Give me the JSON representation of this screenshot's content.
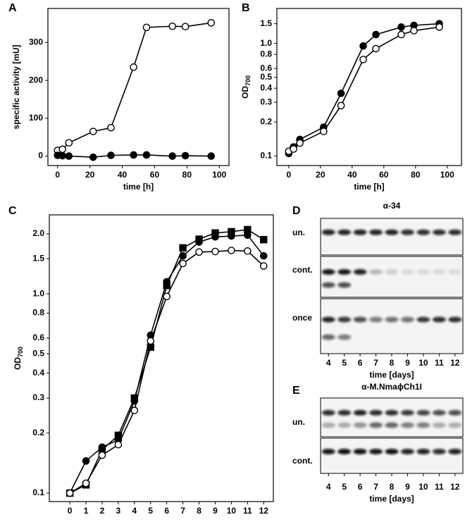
{
  "chart_data": [
    {
      "type": "line",
      "label": "A",
      "xlabel": "time [h]",
      "ylabel": "specific activity [mU]",
      "xlim": [
        -6,
        106
      ],
      "ylim": [
        -25,
        390
      ],
      "xticks": [
        0,
        20,
        40,
        60,
        80,
        100
      ],
      "yticks": [
        0,
        100,
        200,
        300
      ],
      "log_y": false,
      "series": [
        {
          "color": "#000000",
          "fill": "#ffffff",
          "marker": "circle",
          "x": [
            0,
            3,
            7,
            22,
            33,
            47,
            55,
            71,
            79,
            95
          ],
          "values": [
            15,
            18,
            35,
            65,
            75,
            235,
            340,
            343,
            342,
            352
          ]
        },
        {
          "color": "#000000",
          "fill": "#000000",
          "marker": "circle",
          "x": [
            0,
            3,
            7,
            22,
            33,
            47,
            55,
            71,
            79,
            95
          ],
          "values": [
            2,
            1,
            0,
            -3,
            2,
            3,
            3,
            0,
            1,
            0
          ]
        }
      ]
    },
    {
      "type": "line",
      "label": "B",
      "xlabel": "time [h]",
      "ylabel": "OD",
      "ylabel_sub": "700",
      "xlim": [
        -7.5,
        109
      ],
      "ylim": [
        0.082,
        2.05
      ],
      "xticks": [
        0,
        20,
        40,
        60,
        80,
        100
      ],
      "yticks": [
        0.1,
        0.2,
        0.3,
        0.4,
        0.5,
        0.6,
        0.8,
        {
          "value": 1,
          "label": "1.0"
        },
        1.5
      ],
      "log_y": true,
      "series": [
        {
          "color": "#000000",
          "fill": "#000000",
          "marker": "circle",
          "x": [
            0,
            3,
            7,
            22,
            33,
            47,
            55,
            71,
            79,
            95
          ],
          "values": [
            0.105,
            0.12,
            0.14,
            0.18,
            0.36,
            0.95,
            1.2,
            1.4,
            1.45,
            1.5
          ]
        },
        {
          "color": "#000000",
          "fill": "#ffffff",
          "marker": "circle",
          "x": [
            0,
            3,
            7,
            22,
            33,
            47,
            55,
            71,
            79,
            95
          ],
          "values": [
            0.11,
            0.115,
            0.13,
            0.165,
            0.28,
            0.72,
            0.9,
            1.2,
            1.3,
            1.4
          ]
        }
      ]
    },
    {
      "type": "line",
      "label": "C",
      "xlabel": "time [days]",
      "ylabel": "OD",
      "ylabel_sub": "700",
      "xlim": [
        -1.27,
        12.6
      ],
      "ylim": [
        0.0907,
        2.49
      ],
      "xticks": [
        0,
        1,
        2,
        3,
        4,
        5,
        6,
        7,
        8,
        9,
        10,
        11,
        12
      ],
      "yticks": [
        0.1,
        0.2,
        0.3,
        0.4,
        0.5,
        0.6,
        0.8,
        {
          "value": 1,
          "label": "1.0"
        },
        1.5,
        {
          "value": 2,
          "label": "2.0"
        }
      ],
      "log_y": true,
      "series": [
        {
          "color": "#000000",
          "fill": "#000000",
          "marker": "square",
          "x": [
            0,
            1,
            2,
            3,
            4,
            5,
            6,
            7,
            8,
            9,
            10,
            11,
            12
          ],
          "values": [
            0.1,
            0.11,
            0.165,
            0.195,
            0.3,
            0.54,
            1.1,
            1.7,
            1.88,
            2.02,
            2.05,
            2.1,
            1.87
          ]
        },
        {
          "color": "#000000",
          "fill": "#000000",
          "marker": "circle",
          "x": [
            0,
            1,
            2,
            3,
            4,
            5,
            6,
            7,
            8,
            9,
            10,
            11,
            12
          ],
          "values": [
            0.1,
            0.145,
            0.17,
            0.185,
            0.29,
            0.62,
            1.15,
            1.55,
            1.82,
            1.93,
            1.95,
            1.97,
            1.55
          ]
        },
        {
          "color": "#000000",
          "fill": "#ffffff",
          "marker": "circle",
          "x": [
            0,
            1,
            2,
            3,
            4,
            5,
            6,
            7,
            8,
            9,
            10,
            11,
            12
          ],
          "values": [
            0.1,
            0.112,
            0.155,
            0.175,
            0.26,
            0.58,
            0.97,
            1.42,
            1.62,
            1.63,
            1.65,
            1.64,
            1.38
          ]
        }
      ]
    }
  ],
  "blots": [
    {
      "label": "D",
      "title": "α-34",
      "rows": [
        "un.",
        "cont.",
        "once"
      ],
      "lanes": [
        "4",
        "5",
        "6",
        "7",
        "8",
        "9",
        "10",
        "11",
        "12"
      ],
      "xlabel": "time [days]"
    },
    {
      "label": "E",
      "title": "α-M.NmaϕCh1I",
      "rows": [
        "un.",
        "cont."
      ],
      "lanes": [
        "4",
        "5",
        "6",
        "7",
        "8",
        "9",
        "10",
        "11",
        "12"
      ],
      "xlabel": "time [days]"
    }
  ]
}
